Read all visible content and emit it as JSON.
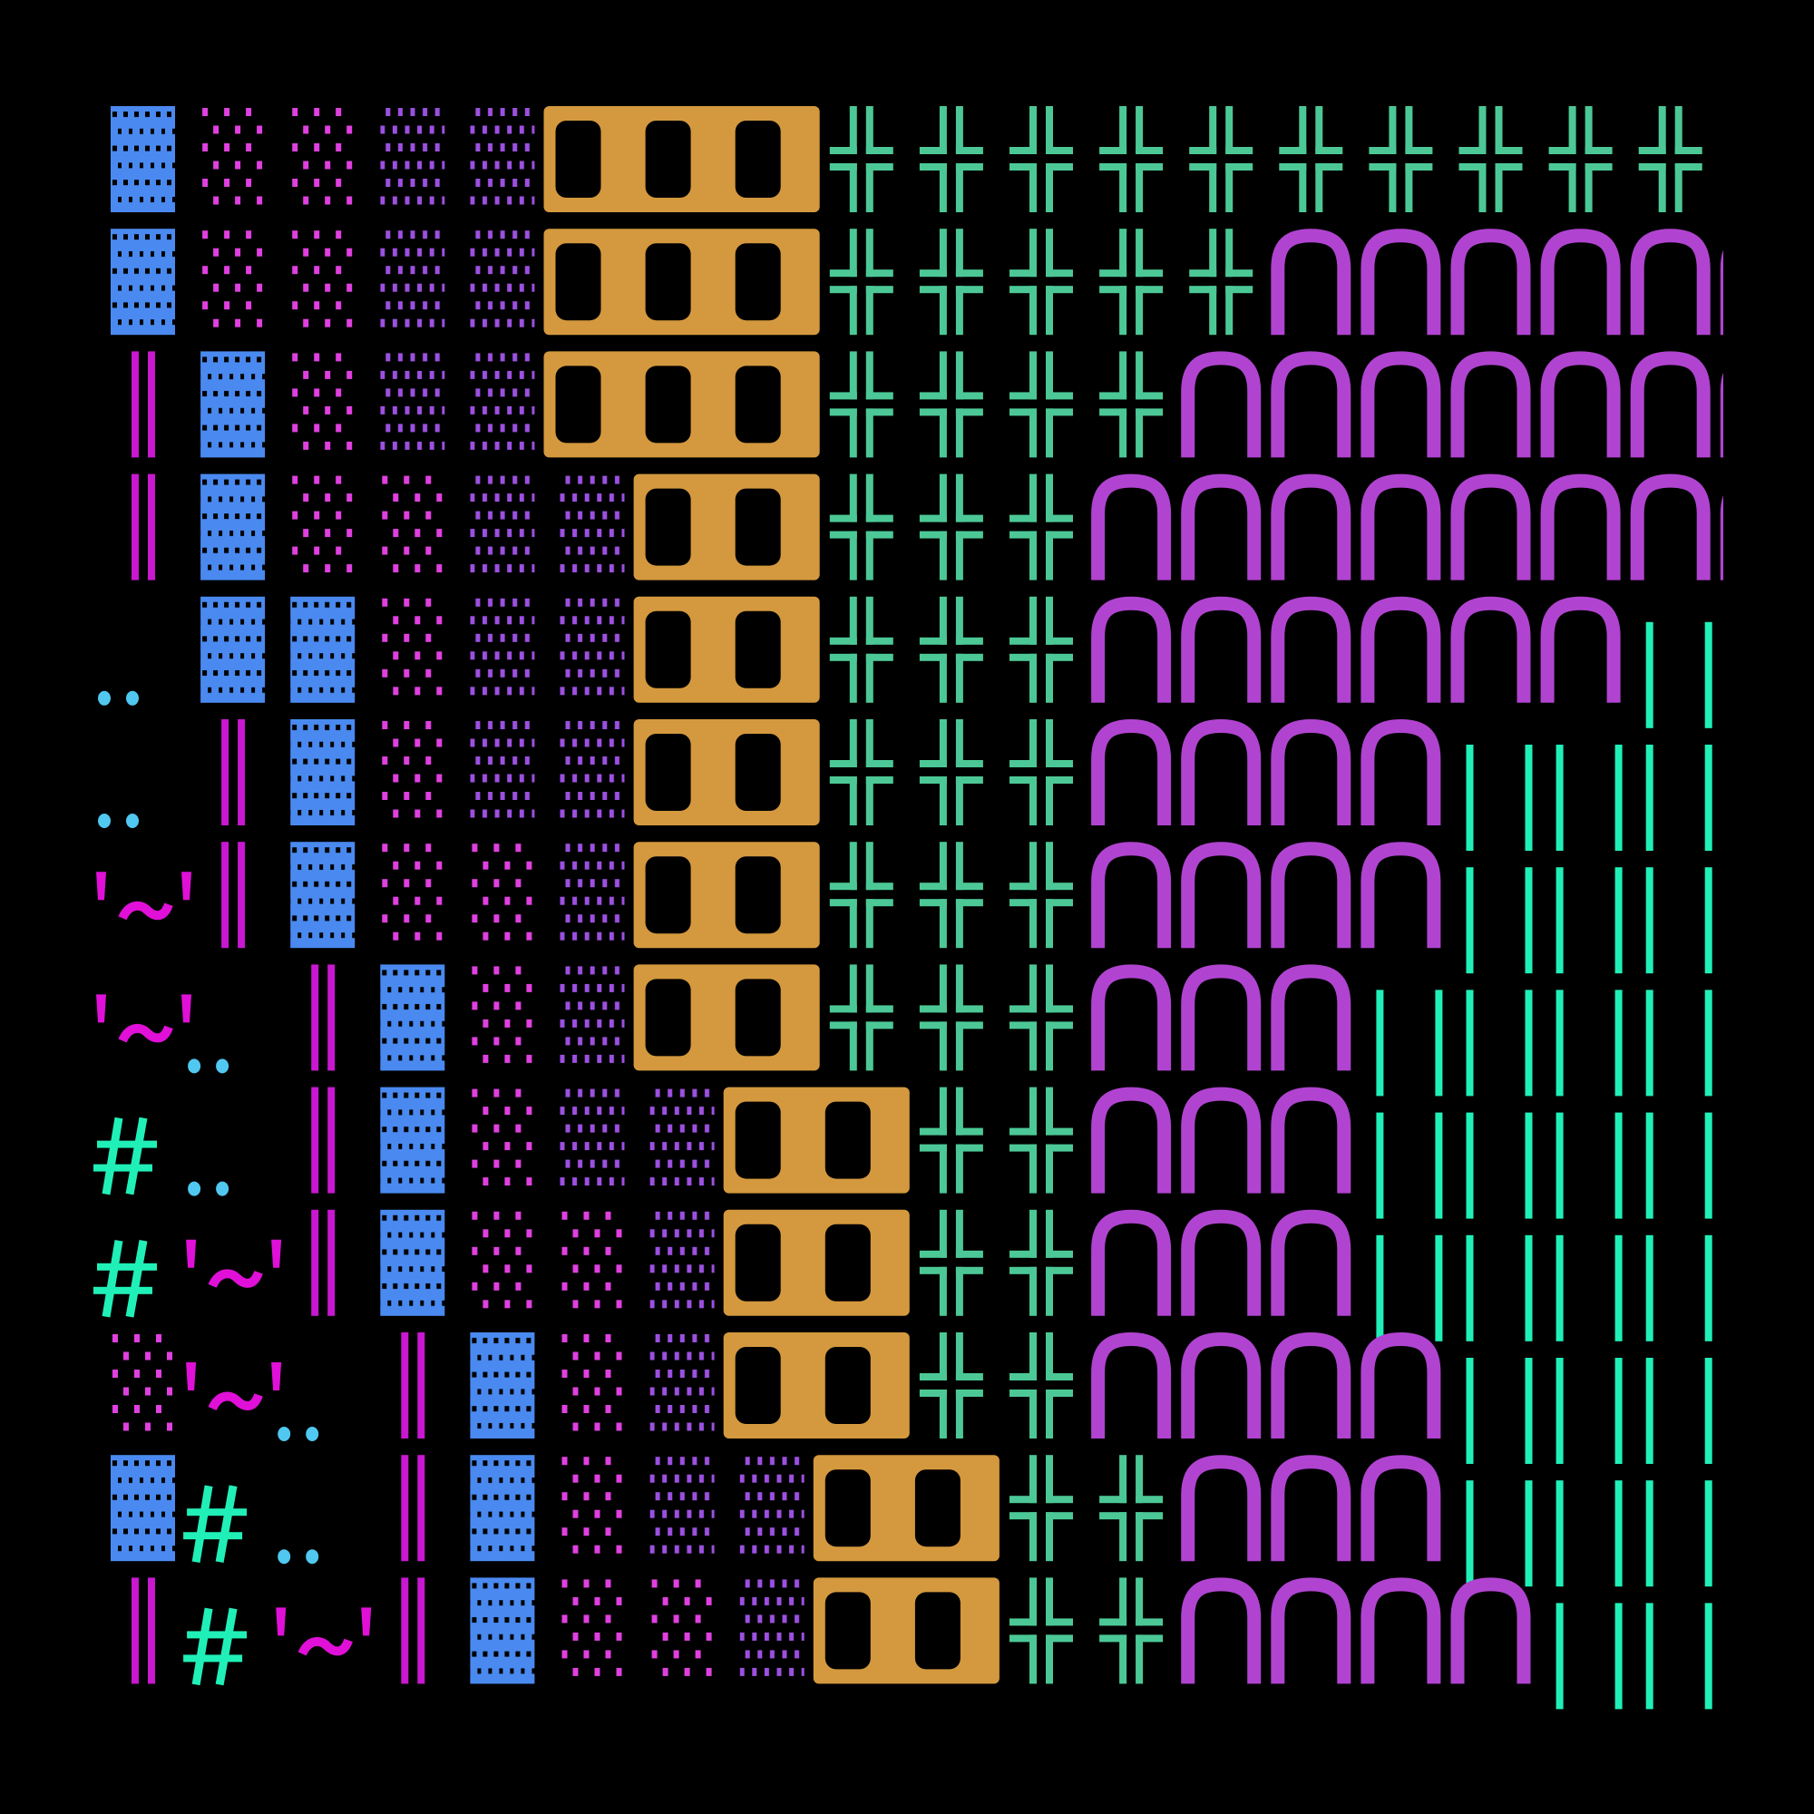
{
  "background": "#000000",
  "glyphs": {
    "▓": {
      "name": "dense-shade-block",
      "color": "#4a8af0"
    },
    "░": {
      "name": "light-shade-block",
      "color": "#e040e0"
    },
    "▒": {
      "name": "medium-shade-block",
      "color": "#9c50e0"
    },
    "Ⅰ": {
      "name": "serif-pillar",
      "color": "#d4993e"
    },
    "╬": {
      "name": "double-cross",
      "color": "#4cc896"
    },
    "∩": {
      "name": "arch",
      "color": "#b044d0"
    },
    "|": {
      "name": "vertical-bars",
      "color": "#20f0b8"
    },
    "║": {
      "name": "double-vertical-bar",
      "color": "#c818d0"
    },
    "..": {
      "name": "double-dot",
      "color": "#50c8f0"
    },
    "'~'": {
      "name": "tilde-quote",
      "color": "#e010d8"
    },
    "#": {
      "name": "hash",
      "color": "#20f0b8"
    }
  },
  "grid": [
    [
      "▓",
      "░",
      "░",
      "▒",
      "▒",
      "Ⅰ",
      "Ⅰ",
      "Ⅰ",
      "╬",
      "╬",
      "╬",
      "╬",
      "╬",
      "╬",
      "╬",
      "╬",
      "╬",
      "╬"
    ],
    [
      "▓",
      "░",
      "░",
      "▒",
      "▒",
      "Ⅰ",
      "Ⅰ",
      "Ⅰ",
      "╬",
      "╬",
      "╬",
      "╬",
      "╬",
      "∩",
      "∩",
      "∩",
      "∩",
      "∩",
      "∩"
    ],
    [
      "║",
      "▓",
      "░",
      "▒",
      "▒",
      "Ⅰ",
      "Ⅰ",
      "Ⅰ",
      "╬",
      "╬",
      "╬",
      "╬",
      "∩",
      "∩",
      "∩",
      "∩",
      "∩",
      "∩",
      "∩"
    ],
    [
      "║",
      "▓",
      "░",
      "░",
      "▒",
      "▒",
      "Ⅰ",
      "Ⅰ",
      "╬",
      "╬",
      "╬",
      "∩",
      "∩",
      "∩",
      "∩",
      "∩",
      "∩",
      "∩",
      "∩"
    ],
    [
      "..",
      "▓",
      "▓",
      "░",
      "▒",
      "▒",
      "Ⅰ",
      "Ⅰ",
      "╬",
      "╬",
      "╬",
      "∩",
      "∩",
      "∩",
      "∩",
      "∩",
      "∩",
      "|"
    ],
    [
      "..",
      "║",
      "▓",
      "░",
      "▒",
      "▒",
      "Ⅰ",
      "Ⅰ",
      "╬",
      "╬",
      "╬",
      "∩",
      "∩",
      "∩",
      "∩",
      "|",
      "|",
      "|"
    ],
    [
      "'~'",
      "║",
      "▓",
      "░",
      "░",
      "▒",
      "Ⅰ",
      "Ⅰ",
      "╬",
      "╬",
      "╬",
      "∩",
      "∩",
      "∩",
      "∩",
      "|",
      "|",
      "|"
    ],
    [
      "'~'",
      "..",
      "║",
      "▓",
      "░",
      "▒",
      "Ⅰ",
      "Ⅰ",
      "╬",
      "╬",
      "╬",
      "∩",
      "∩",
      "∩",
      "|",
      "|",
      "|",
      "|"
    ],
    [
      "#",
      "..",
      "║",
      "▓",
      "░",
      "▒",
      "▒",
      "Ⅰ",
      "Ⅰ",
      "╬",
      "╬",
      "∩",
      "∩",
      "∩",
      "|",
      "|",
      "|",
      "|"
    ],
    [
      "#",
      "'~'",
      "║",
      "▓",
      "░",
      "░",
      "▒",
      "Ⅰ",
      "Ⅰ",
      "╬",
      "╬",
      "∩",
      "∩",
      "∩",
      "|",
      "|",
      "|",
      "|"
    ],
    [
      "░",
      "'~'",
      "..",
      "║",
      "▓",
      "░",
      "▒",
      "Ⅰ",
      "Ⅰ",
      "╬",
      "╬",
      "∩",
      "∩",
      "∩",
      "∩",
      "|",
      "|",
      "|"
    ],
    [
      "▓",
      "#",
      "..",
      "║",
      "▓",
      "░",
      "▒",
      "▒",
      "Ⅰ",
      "Ⅰ",
      "╬",
      "╬",
      "∩",
      "∩",
      "∩",
      "|",
      "|",
      "|"
    ],
    [
      "║",
      "#",
      "'~'",
      "║",
      "▓",
      "░",
      "░",
      "▒",
      "Ⅰ",
      "Ⅰ",
      "╬",
      "╬",
      "∩",
      "∩",
      "∩",
      "∩",
      "|",
      "|"
    ]
  ]
}
